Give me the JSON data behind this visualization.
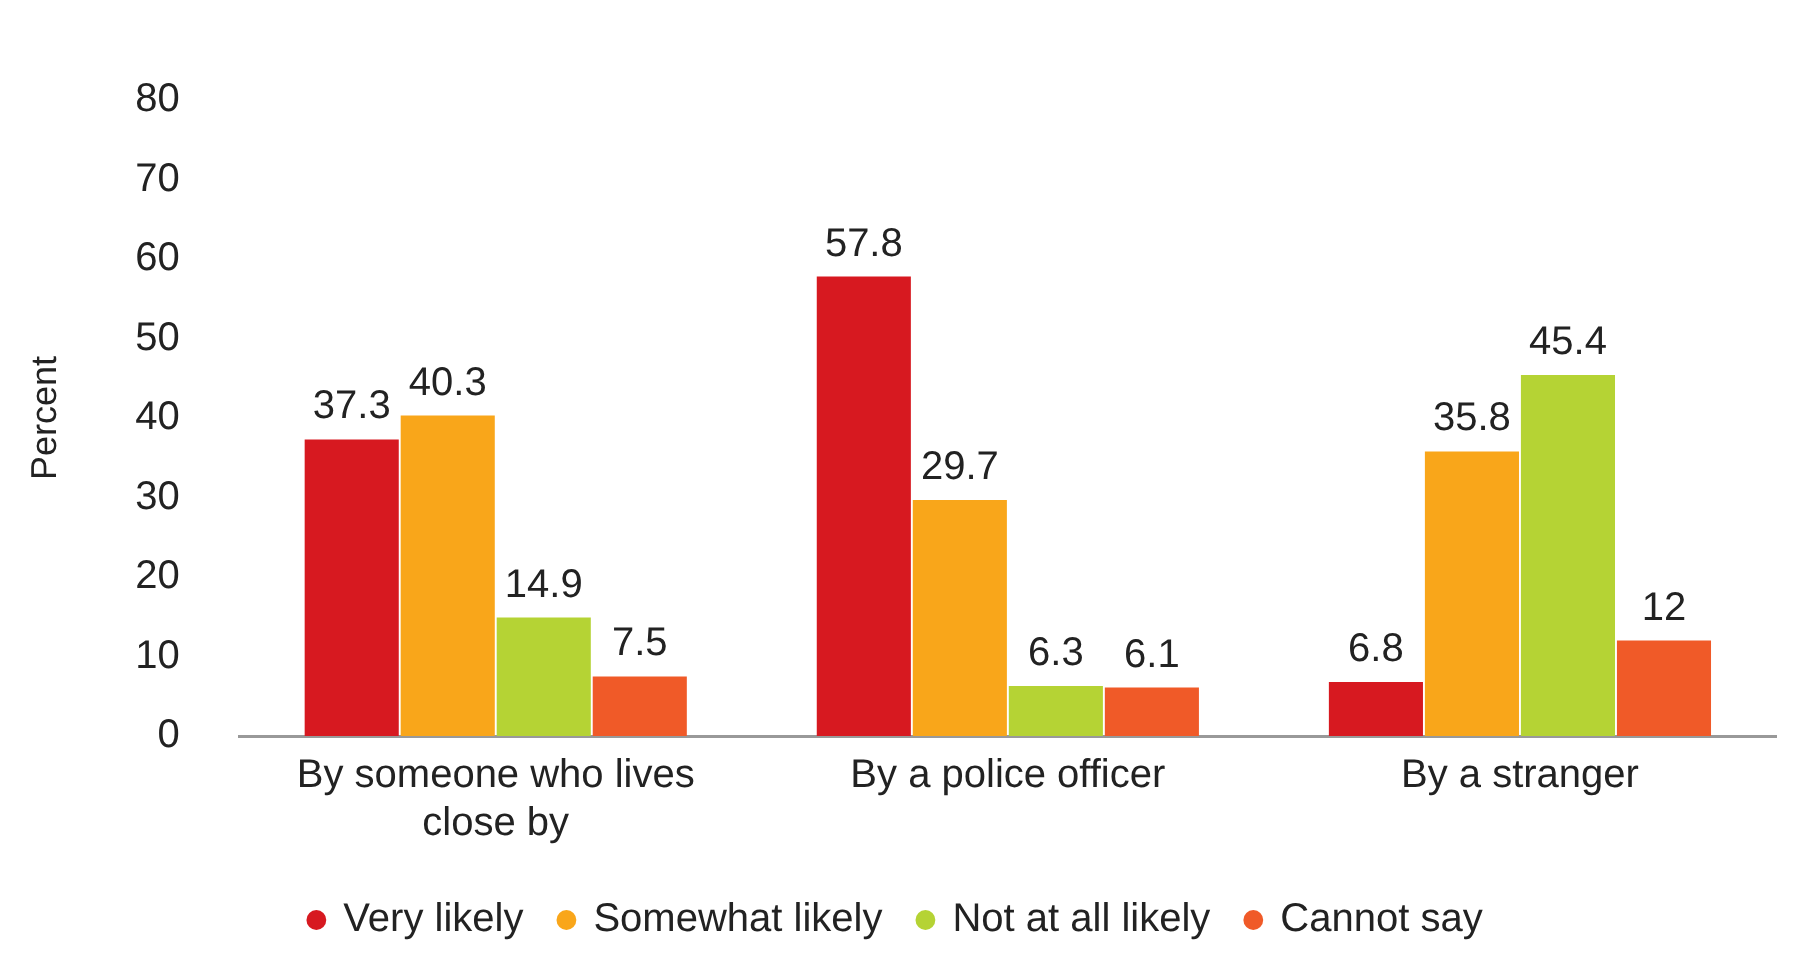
{
  "chart_data": {
    "type": "bar",
    "ylabel": "Percent",
    "categories": [
      "By someone who lives close by",
      "By a police officer",
      "By a stranger"
    ],
    "series": [
      {
        "name": "Very likely",
        "color": "#d71920",
        "values": [
          37.3,
          57.8,
          6.8
        ]
      },
      {
        "name": "Somewhat likely",
        "color": "#f9a61a",
        "values": [
          40.3,
          29.7,
          35.8
        ]
      },
      {
        "name": "Not at all likely",
        "color": "#b5d334",
        "values": [
          14.9,
          6.3,
          45.4
        ]
      },
      {
        "name": "Cannot say",
        "color": "#f05a28",
        "values": [
          7.5,
          6.1,
          12
        ]
      }
    ],
    "ylim": [
      0,
      80
    ],
    "yticks": [
      0,
      10,
      20,
      30,
      40,
      50,
      60,
      70,
      80
    ],
    "grid": false,
    "legend": "bottom",
    "data_labels": true
  }
}
